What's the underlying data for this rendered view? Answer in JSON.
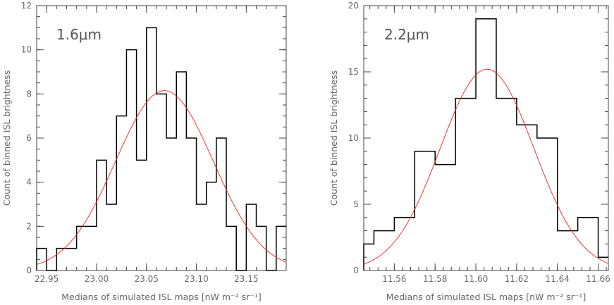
{
  "chart_data": [
    {
      "type": "histogram",
      "panel_label": "1.6μm",
      "xlabel": "Medians of simulated ISL maps [nW m⁻² sr⁻¹]",
      "ylabel": "Count of binned ISL brightness",
      "xlim": [
        22.94,
        23.19
      ],
      "ylim": [
        0,
        12
      ],
      "x_ticks": [
        22.95,
        23.0,
        23.05,
        23.1,
        23.15
      ],
      "x_tick_labels": [
        "22.95",
        "23.00",
        "23.05",
        "23.10",
        "23.15"
      ],
      "y_ticks": [
        0,
        2,
        4,
        6,
        8,
        10,
        12
      ],
      "y_tick_labels": [
        "0",
        "2",
        "4",
        "6",
        "8",
        "10",
        "12"
      ],
      "bin_width": 0.01,
      "bins": [
        {
          "x": 22.945,
          "count": 1
        },
        {
          "x": 22.955,
          "count": 0
        },
        {
          "x": 22.965,
          "count": 1
        },
        {
          "x": 22.975,
          "count": 1
        },
        {
          "x": 22.985,
          "count": 2
        },
        {
          "x": 22.995,
          "count": 2
        },
        {
          "x": 23.005,
          "count": 5
        },
        {
          "x": 23.015,
          "count": 3
        },
        {
          "x": 23.025,
          "count": 7
        },
        {
          "x": 23.035,
          "count": 10
        },
        {
          "x": 23.045,
          "count": 5
        },
        {
          "x": 23.055,
          "count": 11
        },
        {
          "x": 23.065,
          "count": 8
        },
        {
          "x": 23.075,
          "count": 6
        },
        {
          "x": 23.085,
          "count": 9
        },
        {
          "x": 23.095,
          "count": 6
        },
        {
          "x": 23.105,
          "count": 3
        },
        {
          "x": 23.115,
          "count": 4
        },
        {
          "x": 23.125,
          "count": 6
        },
        {
          "x": 23.135,
          "count": 2
        },
        {
          "x": 23.145,
          "count": 0
        },
        {
          "x": 23.155,
          "count": 3
        },
        {
          "x": 23.165,
          "count": 2
        },
        {
          "x": 23.175,
          "count": 0
        },
        {
          "x": 23.185,
          "count": 2
        }
      ],
      "fit": {
        "type": "gaussian",
        "amplitude": 8.15,
        "mean": 23.068,
        "sigma": 0.049
      }
    },
    {
      "type": "histogram",
      "panel_label": "2.2μm",
      "xlabel": "Medians of simulated ISL maps [nW m⁻² sr⁻¹]",
      "ylabel": "Count of binned ISL brightness",
      "xlim": [
        11.545,
        11.665
      ],
      "ylim": [
        0,
        20
      ],
      "x_ticks": [
        11.56,
        11.58,
        11.6,
        11.62,
        11.64,
        11.66
      ],
      "x_tick_labels": [
        "11.56",
        "11.58",
        "11.60",
        "11.62",
        "11.64",
        "11.66"
      ],
      "y_ticks": [
        0,
        5,
        10,
        15,
        20
      ],
      "y_tick_labels": [
        "0",
        "5",
        "10",
        "15",
        "20"
      ],
      "bin_width": 0.01,
      "bins": [
        {
          "x": 11.545,
          "count": 2
        },
        {
          "x": 11.555,
          "count": 3
        },
        {
          "x": 11.565,
          "count": 4
        },
        {
          "x": 11.575,
          "count": 9
        },
        {
          "x": 11.585,
          "count": 8
        },
        {
          "x": 11.595,
          "count": 13
        },
        {
          "x": 11.605,
          "count": 19
        },
        {
          "x": 11.615,
          "count": 13
        },
        {
          "x": 11.625,
          "count": 11
        },
        {
          "x": 11.635,
          "count": 10
        },
        {
          "x": 11.645,
          "count": 3
        },
        {
          "x": 11.655,
          "count": 4
        },
        {
          "x": 11.665,
          "count": 1
        }
      ],
      "fit": {
        "type": "gaussian",
        "amplitude": 15.2,
        "mean": 11.6055,
        "sigma": 0.023
      }
    }
  ],
  "colors": {
    "histogram": "#000000",
    "fit": "#ee2222",
    "axis_text": "#666666"
  }
}
